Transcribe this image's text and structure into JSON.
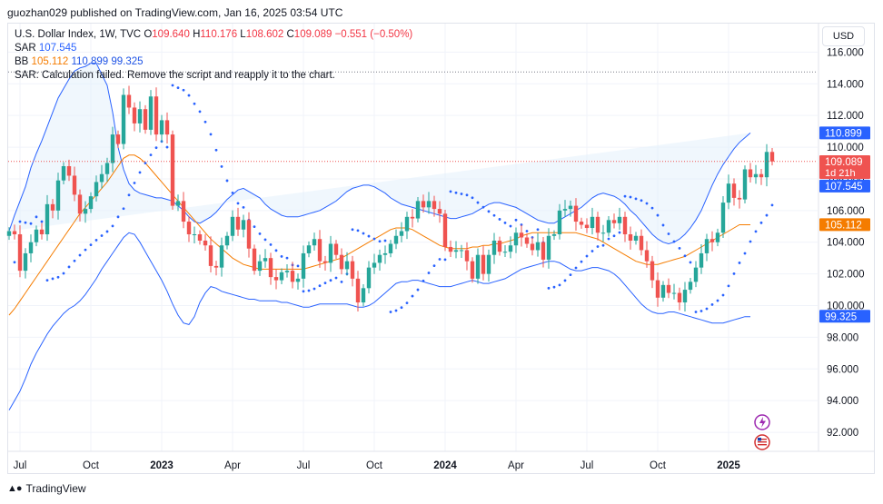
{
  "caption": "guozhan029 published on TradingView.com, Jan 16, 2025 03:54 UTC",
  "footer_brand": "TradingView",
  "currency_label": "USD",
  "legend": {
    "symbol": "U.S. Dollar Index, 1W, TVC",
    "o_label": "O",
    "o_value": "109.640",
    "h_label": "H",
    "h_value": "110.176",
    "l_label": "L",
    "l_value": "108.602",
    "c_label": "C",
    "c_value": "109.089",
    "change": "−0.551 (−0.50%)",
    "sar_label": "SAR",
    "sar_value": "107.545",
    "bb_label": "BB",
    "bb_basis": "105.112",
    "bb_upper": "110.899",
    "bb_lower": "99.325",
    "sar_error": "SAR: Calculation failed. Remove the script and reapply it to the chart."
  },
  "colors": {
    "up": "#26a69a",
    "down": "#ef5350",
    "band": "#2962ff",
    "basis": "#f57c00",
    "sar": "#2962ff",
    "fill": "#e3f0fb"
  },
  "chart_data": {
    "type": "candlestick",
    "ylim": [
      90.8,
      117.8
    ],
    "y_ticks": [
      "116.000",
      "114.000",
      "112.000",
      "110.000",
      "108.000",
      "106.000",
      "104.000",
      "102.000",
      "100.000",
      "98.000",
      "96.000",
      "94.000",
      "92.000"
    ],
    "x_ticks": [
      {
        "label": "Jul",
        "bold": false,
        "week": 2
      },
      {
        "label": "Oct",
        "bold": false,
        "week": 15
      },
      {
        "label": "2023",
        "bold": true,
        "week": 28
      },
      {
        "label": "Apr",
        "bold": false,
        "week": 41
      },
      {
        "label": "Jul",
        "bold": false,
        "week": 54
      },
      {
        "label": "Oct",
        "bold": false,
        "week": 67
      },
      {
        "label": "2024",
        "bold": true,
        "week": 80
      },
      {
        "label": "Apr",
        "bold": false,
        "week": 93
      },
      {
        "label": "Jul",
        "bold": false,
        "week": 106
      },
      {
        "label": "Oct",
        "bold": false,
        "week": 119
      },
      {
        "label": "2025",
        "bold": true,
        "week": 132
      }
    ],
    "price_labels": [
      {
        "name": "bb_upper",
        "value": 110.899,
        "text": "110.899",
        "bg": "#2962ff"
      },
      {
        "name": "last_close",
        "value": 109.089,
        "text": "109.089",
        "sub": "1d 21h",
        "bg": "#ef5350"
      },
      {
        "name": "sar",
        "value": 107.545,
        "text": "107.545",
        "bg": "#2962ff"
      },
      {
        "name": "bb_basis",
        "value": 105.112,
        "text": "105.112",
        "bg": "#f57c00"
      },
      {
        "name": "bb_lower",
        "value": 99.325,
        "text": "99.325",
        "bg": "#2962ff"
      }
    ],
    "close": [
      104.7,
      104.5,
      102.2,
      103.3,
      104.0,
      104.8,
      104.5,
      106.4,
      106.0,
      107.9,
      108.8,
      108.2,
      107.0,
      105.8,
      106.1,
      106.9,
      107.8,
      108.3,
      109.0,
      110.8,
      110.2,
      113.3,
      112.5,
      111.5,
      112.4,
      111.1,
      113.2,
      110.8,
      111.7,
      110.8,
      106.3,
      106.6,
      105.3,
      104.5,
      104.5,
      104.1,
      103.8,
      102.5,
      102.4,
      103.8,
      104.4,
      105.6,
      104.8,
      105.4,
      103.6,
      102.2,
      102.8,
      103.0,
      101.8,
      101.6,
      102.1,
      102.2,
      101.5,
      101.7,
      103.3,
      103.8,
      104.2,
      102.8,
      102.7,
      103.9,
      103.2,
      102.3,
      102.8,
      101.7,
      100.2,
      101.1,
      102.4,
      102.7,
      103.2,
      103.3,
      103.9,
      104.4,
      104.7,
      105.6,
      105.5,
      106.6,
      106.2,
      106.6,
      106.1,
      105.8,
      103.7,
      103.4,
      103.5,
      103.5,
      102.8,
      101.7,
      103.2,
      102.0,
      103.2,
      104.1,
      103.4,
      103.4,
      103.8,
      104.6,
      104.3,
      103.9,
      103.5,
      104.0,
      102.9,
      104.4,
      104.5,
      106.0,
      106.1,
      106.3,
      105.3,
      105.1,
      104.9,
      105.6,
      104.6,
      104.6,
      105.4,
      105.2,
      105.6,
      104.5,
      104.1,
      104.4,
      103.5,
      102.8,
      101.6,
      100.5,
      101.3,
      100.8,
      100.8,
      100.2,
      101.0,
      101.5,
      102.4,
      103.3,
      104.2,
      104.0,
      104.6,
      106.5,
      107.7,
      106.8,
      106.7,
      108.6,
      108.1,
      108.3,
      108.1,
      109.7,
      109.1
    ],
    "bb_upper": [
      104.7,
      105.7,
      106.6,
      107.5,
      108.7,
      109.6,
      110.4,
      111.3,
      112.2,
      113.1,
      113.7,
      114.3,
      114.8,
      115.0,
      115.1,
      115.3,
      115.3,
      114.6,
      113.9,
      112.2,
      110.0,
      108.6,
      107.7,
      107.3,
      107.1,
      107.0,
      106.9,
      106.8,
      106.8,
      106.7,
      106.6,
      106.3,
      106.0,
      105.6,
      105.3,
      105.2,
      105.4,
      105.6,
      105.9,
      106.3,
      106.7,
      107.0,
      107.3,
      107.4,
      107.2,
      107.0,
      106.8,
      106.4,
      106.1,
      105.9,
      105.7,
      105.6,
      105.6,
      105.6,
      105.7,
      105.8,
      105.9,
      106.0,
      106.2,
      106.4,
      106.6,
      106.9,
      107.2,
      107.4,
      107.5,
      107.6,
      107.6,
      107.5,
      107.3,
      107.1,
      106.8,
      106.6,
      106.4,
      106.3,
      106.2,
      106.1,
      106.0,
      105.9,
      105.8,
      105.7,
      105.6,
      105.5,
      105.5,
      105.6,
      105.7,
      105.8,
      106.0,
      106.2,
      106.4,
      106.5,
      106.5,
      106.4,
      106.3,
      106.2,
      106.0,
      105.8,
      105.6,
      105.4,
      105.3,
      105.2,
      105.2,
      105.4,
      105.6,
      105.8,
      106.0,
      106.2,
      106.5,
      106.8,
      107.0,
      107.1,
      107.0,
      106.9,
      106.7,
      106.4,
      106.0,
      105.7,
      105.3,
      104.9,
      104.5,
      104.2,
      104.0,
      103.9,
      104.0,
      104.2,
      104.5,
      104.9,
      105.4,
      106.0,
      106.8,
      107.6,
      108.3,
      108.9,
      109.4,
      109.9,
      110.3,
      110.6,
      110.9
    ],
    "bb_basis": [
      99.4,
      99.8,
      100.3,
      100.8,
      101.3,
      101.8,
      102.3,
      102.8,
      103.3,
      103.8,
      104.3,
      104.8,
      105.3,
      105.8,
      106.2,
      106.6,
      107.0,
      107.4,
      107.8,
      108.3,
      108.8,
      109.3,
      109.5,
      109.5,
      109.3,
      109.0,
      108.6,
      108.2,
      107.8,
      107.4,
      107.0,
      106.6,
      106.2,
      105.8,
      105.4,
      105.0,
      104.6,
      104.2,
      103.9,
      103.6,
      103.3,
      103.0,
      102.8,
      102.6,
      102.5,
      102.4,
      102.3,
      102.3,
      102.3,
      102.3,
      102.3,
      102.3,
      102.3,
      102.3,
      102.3,
      102.4,
      102.5,
      102.6,
      102.7,
      102.8,
      102.9,
      103.0,
      103.2,
      103.4,
      103.6,
      103.8,
      104.0,
      104.2,
      104.4,
      104.6,
      104.8,
      104.9,
      104.9,
      104.9,
      104.8,
      104.6,
      104.4,
      104.2,
      104.0,
      103.8,
      103.7,
      103.6,
      103.6,
      103.6,
      103.6,
      103.7,
      103.7,
      103.8,
      103.8,
      103.9,
      103.9,
      104.0,
      104.1,
      104.2,
      104.4,
      104.5,
      104.6,
      104.6,
      104.6,
      104.6,
      104.6,
      104.6,
      104.6,
      104.6,
      104.6,
      104.5,
      104.4,
      104.3,
      104.2,
      104.0,
      103.8,
      103.6,
      103.4,
      103.2,
      103.0,
      102.8,
      102.7,
      102.6,
      102.6,
      102.6,
      102.7,
      102.8,
      102.9,
      103.0,
      103.1,
      103.3,
      103.5,
      103.7,
      103.9,
      104.1,
      104.3,
      104.5,
      104.7,
      104.9,
      105.1,
      105.1,
      105.1
    ],
    "bb_lower": [
      93.4,
      94.0,
      94.6,
      95.4,
      96.3,
      97.0,
      97.6,
      98.2,
      98.7,
      99.1,
      99.5,
      99.8,
      100.0,
      100.3,
      100.7,
      101.2,
      101.7,
      102.3,
      102.8,
      103.3,
      103.8,
      104.3,
      104.6,
      104.5,
      104.0,
      103.4,
      102.8,
      102.2,
      101.6,
      100.9,
      100.1,
      99.4,
      98.9,
      98.8,
      99.3,
      100.2,
      100.8,
      101.2,
      101.1,
      100.9,
      100.8,
      100.7,
      100.6,
      100.5,
      100.4,
      100.4,
      100.3,
      100.3,
      100.3,
      100.3,
      100.2,
      100.2,
      100.1,
      100.0,
      99.9,
      99.9,
      100.0,
      100.1,
      100.1,
      100.1,
      100.1,
      100.1,
      100.1,
      100.0,
      99.9,
      99.9,
      100.0,
      100.2,
      100.5,
      100.8,
      101.1,
      101.4,
      101.5,
      101.5,
      101.6,
      101.6,
      101.5,
      101.4,
      101.3,
      101.2,
      101.2,
      101.2,
      101.3,
      101.4,
      101.5,
      101.6,
      101.5,
      101.4,
      101.4,
      101.5,
      101.6,
      101.7,
      101.9,
      102.1,
      102.3,
      102.4,
      102.5,
      102.6,
      102.7,
      102.8,
      102.8,
      102.7,
      102.5,
      102.3,
      102.2,
      102.2,
      102.3,
      102.4,
      102.4,
      102.3,
      102.2,
      102.0,
      101.7,
      101.3,
      100.9,
      100.5,
      100.1,
      99.8,
      99.6,
      99.5,
      99.5,
      99.6,
      99.6,
      99.5,
      99.4,
      99.3,
      99.2,
      99.1,
      99.0,
      98.9,
      98.9,
      98.9,
      99.0,
      99.1,
      99.2,
      99.3,
      99.3
    ]
  }
}
